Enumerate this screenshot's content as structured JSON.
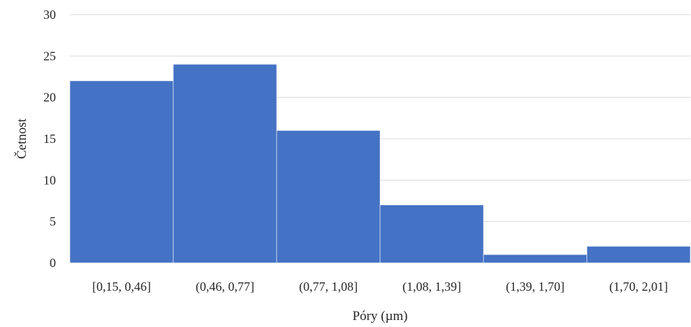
{
  "chart_data": {
    "type": "bar",
    "title": "",
    "xlabel": "Póry (µm)",
    "ylabel": "Četnost",
    "categories": [
      "[0,15, 0,46]",
      "(0,46, 0,77]",
      "(0,77, 1,08]",
      "(1,08, 1,39]",
      "(1,39, 1,70]",
      "(1,70, 2,01]"
    ],
    "values": [
      22,
      24,
      16,
      7,
      1,
      2
    ],
    "ylim": [
      0,
      30
    ],
    "yticks": [
      "0",
      "5",
      "10",
      "15",
      "20",
      "25",
      "30"
    ],
    "grid": true,
    "legend": "none",
    "bar_color": "#4472C4"
  }
}
